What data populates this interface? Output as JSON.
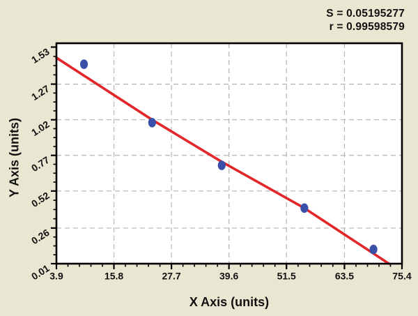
{
  "stats": {
    "s": "S = 0.05195277",
    "r": "r = 0.99598579"
  },
  "chart_data": {
    "type": "scatter",
    "title": "",
    "xlabel": "X Axis (units)",
    "ylabel": "Y Axis (units)",
    "x_tick_labels": [
      "3.9",
      "15.8",
      "27.7",
      "39.6",
      "51.5",
      "63.5",
      "75.4"
    ],
    "y_tick_labels": [
      "1.53",
      "1.27",
      "1.02",
      "0.77",
      "0.52",
      "0.26",
      "0.01"
    ],
    "x_minor_divisions": 5,
    "y_minor_divisions": 4,
    "xlim": [
      3.9,
      75.4
    ],
    "ylim": [
      0.01,
      1.53
    ],
    "grid": "dashed",
    "points": [
      {
        "x": 9.6,
        "y": 1.41
      },
      {
        "x": 23.7,
        "y": 1.0
      },
      {
        "x": 38.1,
        "y": 0.7
      },
      {
        "x": 55.2,
        "y": 0.4
      },
      {
        "x": 69.5,
        "y": 0.11
      }
    ],
    "fit_line": [
      {
        "x": 3.9,
        "y": 1.455
      },
      {
        "x": 23.7,
        "y": 1.02
      },
      {
        "x": 38.1,
        "y": 0.725
      },
      {
        "x": 55.2,
        "y": 0.4
      },
      {
        "x": 72.7,
        "y": 0.01
      }
    ],
    "colors": {
      "background": "#e9e6d1",
      "plot_background": "#ffffff",
      "point": "#3a4fa8",
      "fit_line": "#e2262a",
      "grid": "#b3b3b3",
      "frame": "#000000",
      "text": "#111111"
    }
  }
}
